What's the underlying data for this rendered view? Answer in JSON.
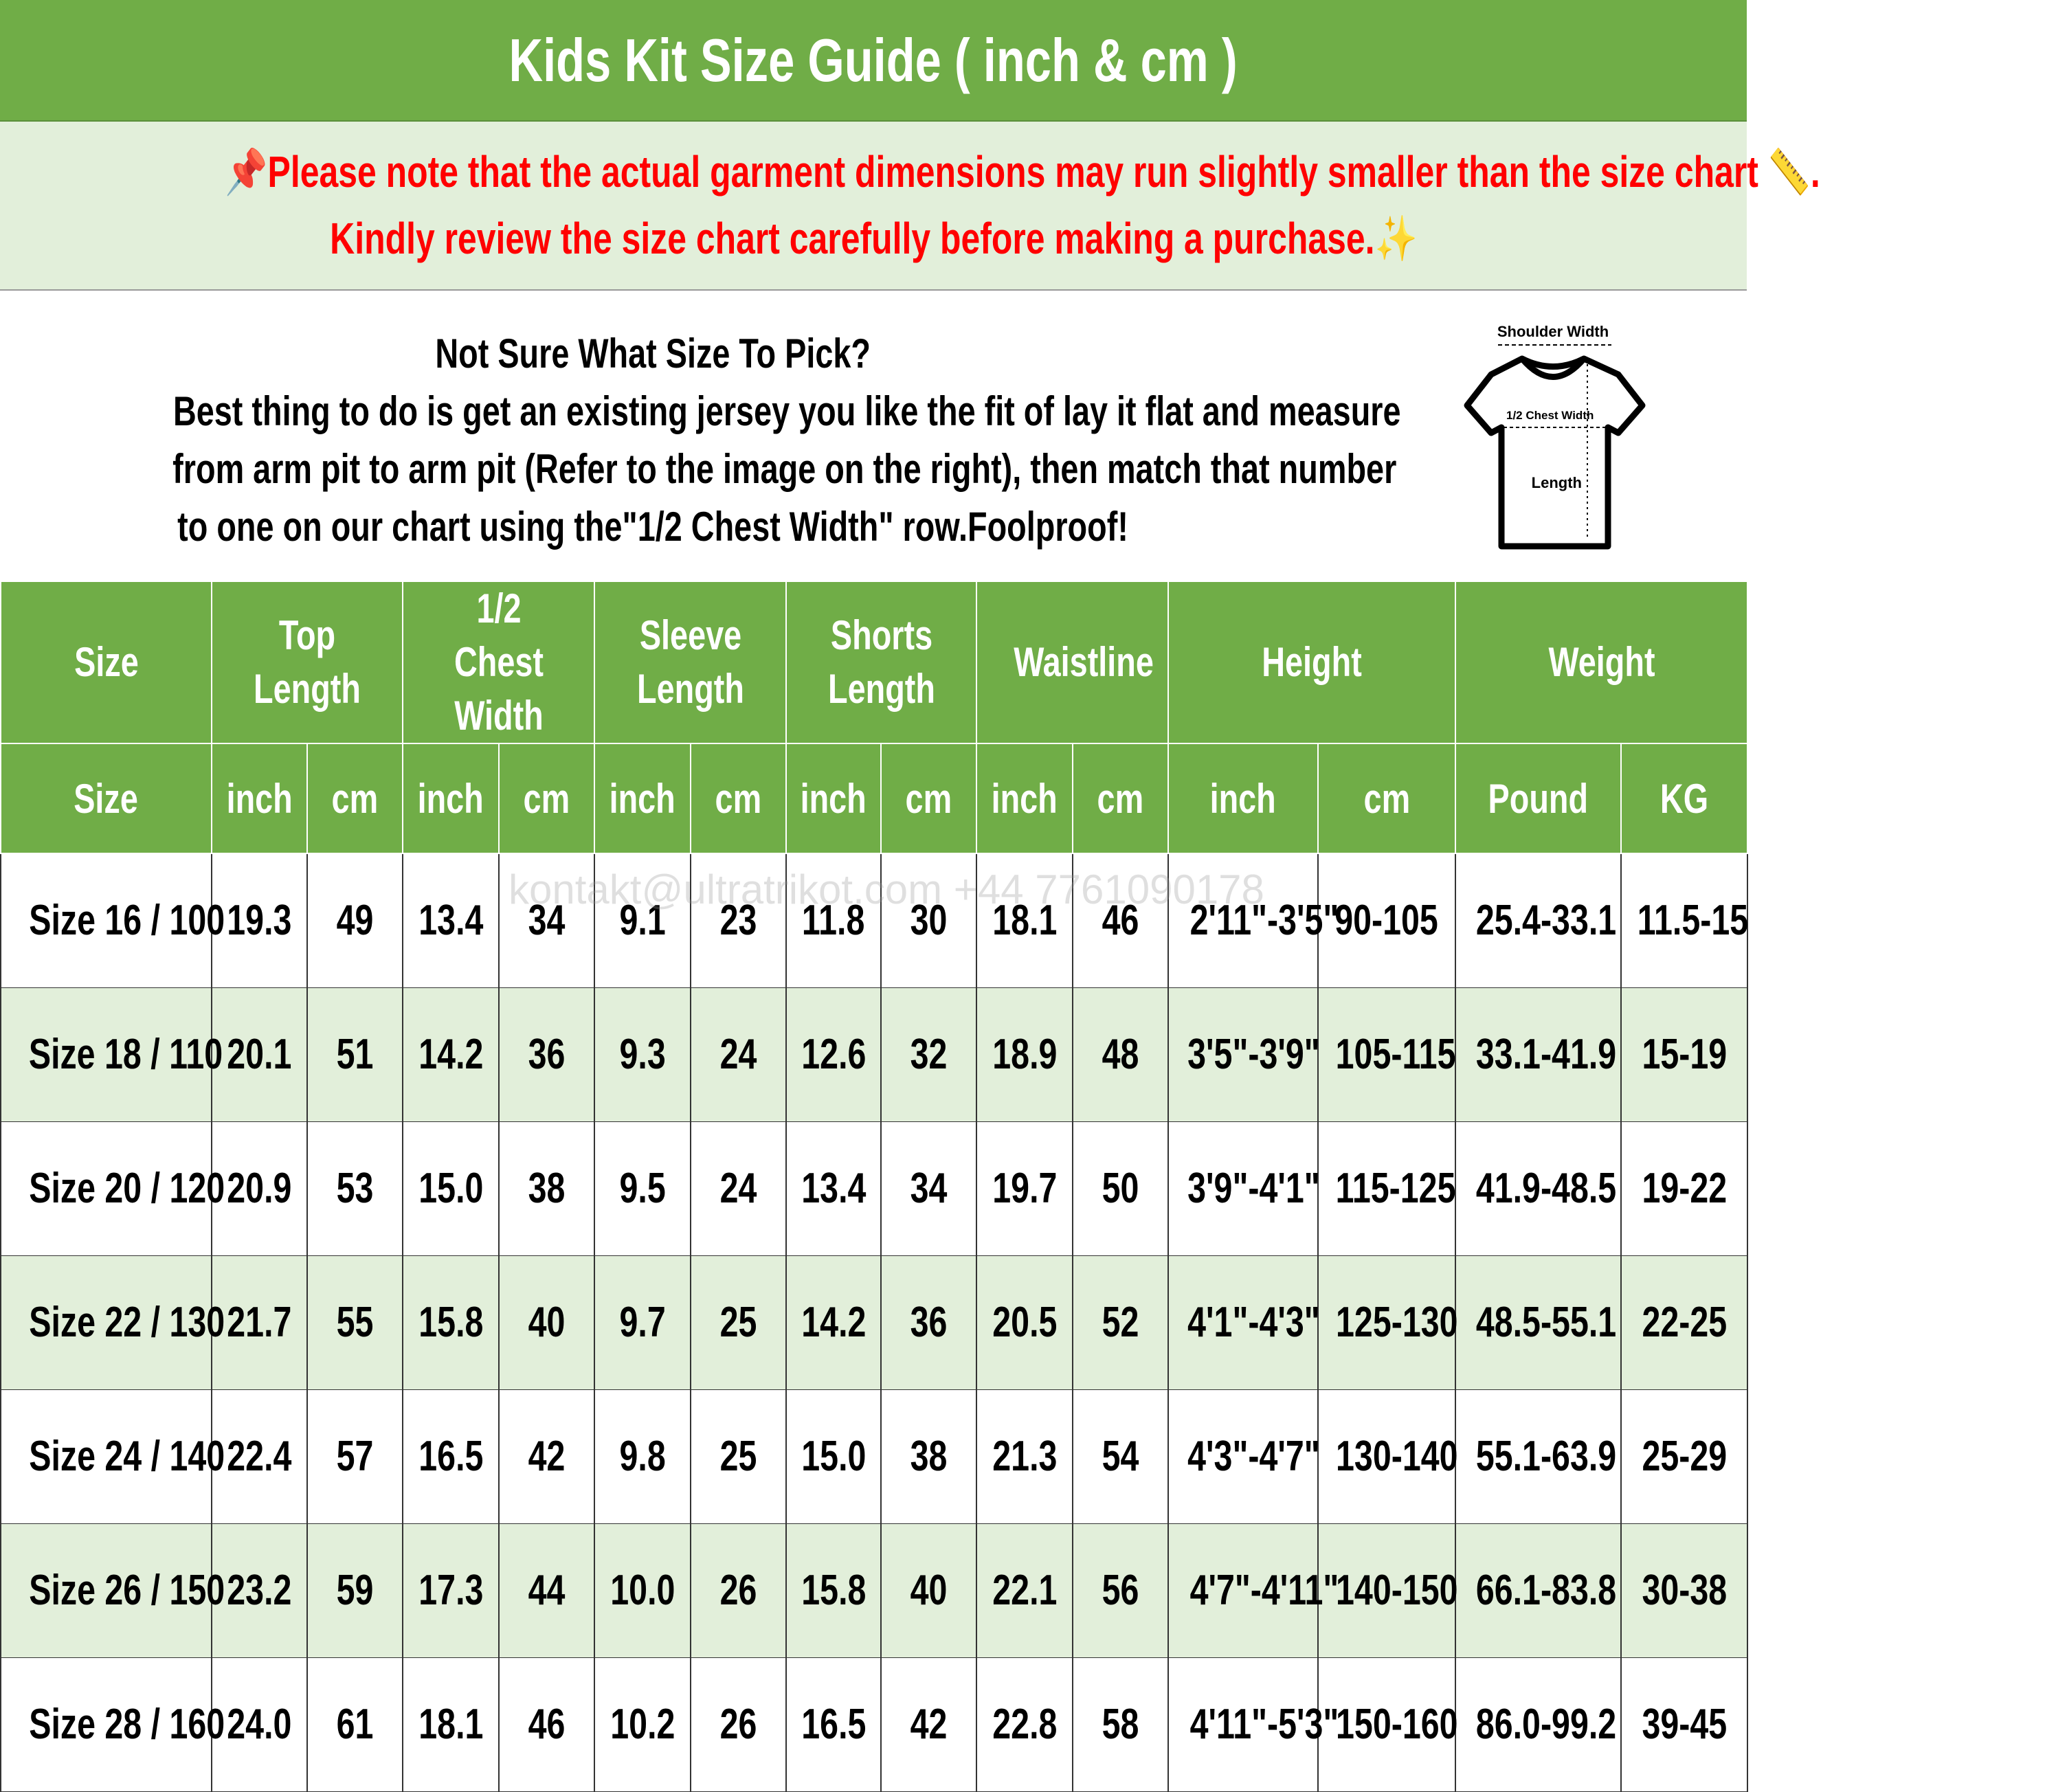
{
  "title": "Kids Kit Size Guide ( inch & cm )",
  "note": {
    "line1": "Please note that the actual garment dimensions may run slightly smaller than the size chart",
    "line1_end": ".",
    "line2": "Kindly review the size chart carefully before making a purchase.",
    "icons": [
      "pushpin-icon",
      "ruler-icon",
      "sparkles-icon"
    ],
    "color": "#ff0000"
  },
  "info": {
    "heading": "Not Sure What Size To Pick?",
    "body": [
      "Best thing to do is get an existing jersey you like the fit of lay it flat and measure",
      "from arm pit to arm pit (Refer to the image on the right), then match that number",
      "to one on our chart using the\"1/2 Chest Width\" row.Foolproof!"
    ]
  },
  "diagram": {
    "shoulder": "Shoulder Width",
    "chest": "1/2 Chest Width",
    "length": "Length"
  },
  "watermark": "kontakt@ultratrikot.com   +44 7761090178",
  "colors": {
    "header": "#70ad47",
    "stripe": "#e2efda"
  },
  "header1": [
    "Size",
    "Top Length",
    "1/2 Chest Width",
    "Sleeve Length",
    "Shorts Length",
    "Waistline",
    "Height",
    "Weight"
  ],
  "header2": [
    "Size",
    "inch",
    "cm",
    "inch",
    "cm",
    "inch",
    "cm",
    "inch",
    "cm",
    "inch",
    "cm",
    "inch",
    "cm",
    "Pound",
    "KG"
  ],
  "rows": [
    [
      "Size 16 / 100",
      "19.3",
      "49",
      "13.4",
      "34",
      "9.1",
      "23",
      "11.8",
      "30",
      "18.1",
      "46",
      "2'11\"-3'5\"",
      "90-105",
      "25.4-33.1",
      "11.5-15"
    ],
    [
      "Size 18 / 110",
      "20.1",
      "51",
      "14.2",
      "36",
      "9.3",
      "24",
      "12.6",
      "32",
      "18.9",
      "48",
      "3'5\"-3'9\"",
      "105-115",
      "33.1-41.9",
      "15-19"
    ],
    [
      "Size 20 / 120",
      "20.9",
      "53",
      "15.0",
      "38",
      "9.5",
      "24",
      "13.4",
      "34",
      "19.7",
      "50",
      "3'9\"-4'1\"",
      "115-125",
      "41.9-48.5",
      "19-22"
    ],
    [
      "Size 22 / 130",
      "21.7",
      "55",
      "15.8",
      "40",
      "9.7",
      "25",
      "14.2",
      "36",
      "20.5",
      "52",
      "4'1\"-4'3\"",
      "125-130",
      "48.5-55.1",
      "22-25"
    ],
    [
      "Size 24 / 140",
      "22.4",
      "57",
      "16.5",
      "42",
      "9.8",
      "25",
      "15.0",
      "38",
      "21.3",
      "54",
      "4'3\"-4'7\"",
      "130-140",
      "55.1-63.9",
      "25-29"
    ],
    [
      "Size 26 / 150",
      "23.2",
      "59",
      "17.3",
      "44",
      "10.0",
      "26",
      "15.8",
      "40",
      "22.1",
      "56",
      "4'7\"-4'11\"",
      "140-150",
      "66.1-83.8",
      "30-38"
    ],
    [
      "Size 28 / 160",
      "24.0",
      "61",
      "18.1",
      "46",
      "10.2",
      "26",
      "16.5",
      "42",
      "22.8",
      "58",
      "4'11\"-5'3\"",
      "150-160",
      "86.0-99.2",
      "39-45"
    ]
  ]
}
